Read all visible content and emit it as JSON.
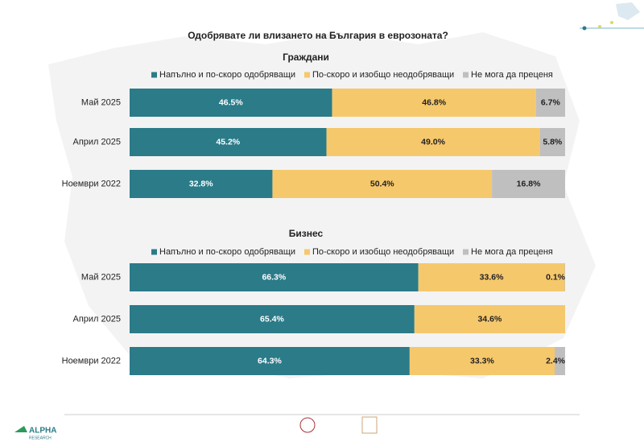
{
  "title": "Одобрявате ли влизането на България в еврозоната?",
  "chart_data": [
    {
      "type": "bar",
      "stacked": true,
      "orientation": "horizontal",
      "title": "Граждани",
      "legend": "top",
      "categories": [
        "Май 2025",
        "Април 2025",
        "Ноември 2022"
      ],
      "series": [
        {
          "name": "Напълно и по-скоро одобряващи",
          "color": "#2b7b89",
          "values": [
            46.5,
            45.2,
            32.8
          ],
          "value_labels": [
            "46.5%",
            "45.2%",
            "32.8%"
          ]
        },
        {
          "name": "По-скоро и изобщо неодобряващи",
          "color": "#f6c86c",
          "values": [
            46.8,
            49.0,
            50.4
          ],
          "value_labels": [
            "46.8%",
            "49.0%",
            "50.4%"
          ]
        },
        {
          "name": "Не мога да преценя",
          "color": "#bfbfbf",
          "values": [
            6.7,
            5.8,
            16.8
          ],
          "value_labels": [
            "6.7%",
            "5.8%",
            "16.8%"
          ]
        }
      ]
    },
    {
      "type": "bar",
      "stacked": true,
      "orientation": "horizontal",
      "title": "Бизнес",
      "legend": "top",
      "categories": [
        "Май 2025",
        "Април 2025",
        "Ноември 2022"
      ],
      "series": [
        {
          "name": "Напълно и по-скоро одобряващи",
          "color": "#2b7b89",
          "values": [
            66.3,
            65.4,
            64.3
          ],
          "value_labels": [
            "66.3%",
            "65.4%",
            "64.3%"
          ]
        },
        {
          "name": "По-скоро и изобщо неодобряващи",
          "color": "#f6c86c",
          "values": [
            33.6,
            34.6,
            33.3
          ],
          "value_labels": [
            "33.6%",
            "34.6%",
            "33.3%"
          ]
        },
        {
          "name": "Не мога да преценя",
          "color": "#bfbfbf",
          "values": [
            0.1,
            0,
            2.4
          ],
          "value_labels": [
            "0.1%",
            null,
            "2.4%"
          ]
        }
      ]
    }
  ],
  "footer": {
    "logo": "ALPHA",
    "logo_sub": "RESEARCH"
  }
}
